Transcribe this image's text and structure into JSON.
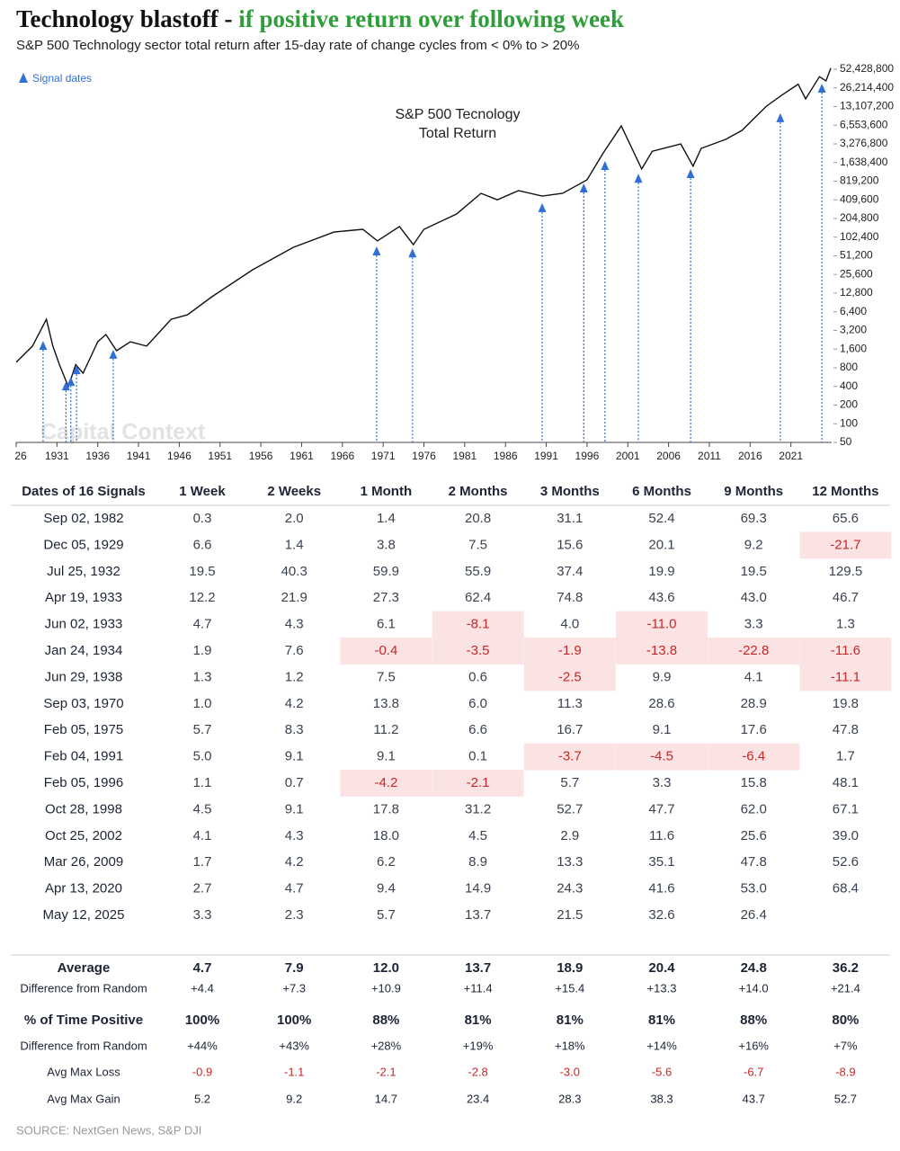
{
  "title": "Technology blastoff - ",
  "title_highlight": "if positive return over following week",
  "subtitle": "S&P 500 Technology sector total return after 15-day rate of change cycles from < 0% to > 20%",
  "chart_data": {
    "type": "line",
    "log_y": true,
    "annotation": [
      "S&P 500 Tecnology",
      "Total Return"
    ],
    "watermark": "Capital Context",
    "series": [
      {
        "color": "#111111",
        "x": [
          1926,
          1928,
          1929.7,
          1930.5,
          1931.3,
          1932.4,
          1933.3,
          1934.2,
          1936,
          1937,
          1938.3,
          1940,
          1942,
          1945,
          1947,
          1950,
          1955,
          1960,
          1965,
          1968.5,
          1970.3,
          1973,
          1974.7,
          1976,
          1980,
          1983,
          1985,
          1987.6,
          1990.5,
          1993,
          1996,
          1998,
          2000.2,
          2002.7,
          2004,
          2007.5,
          2009,
          2010,
          2013,
          2015,
          2018,
          2020,
          2021.9,
          2022.8,
          2024.5,
          2025.3,
          2025.9
        ],
        "values": [
          980,
          1790,
          4850,
          1790,
          900,
          397,
          900,
          655,
          2100,
          2750,
          1510,
          2100,
          1790,
          4850,
          5730,
          11200,
          30500,
          70300,
          124000,
          137000,
          89000,
          152000,
          77600,
          137000,
          242000,
          522000,
          410000,
          577000,
          470000,
          522000,
          860000,
          2350000,
          6380000,
          1290000,
          2490000,
          3270000,
          1430000,
          2770000,
          3870000,
          5400000,
          13300000,
          20500000,
          30000000,
          17400000,
          39700000,
          34000000,
          55000000
        ]
      },
      {
        "name": "Signal dates",
        "color": "#2f6fd6",
        "marker": "triangle",
        "x": [
          1929.3,
          1932.1,
          1932.7,
          1933.4,
          1937.9,
          1970.2,
          1974.6,
          1990.5,
          1995.6,
          1998.2,
          2002.3,
          2008.7,
          2019.7,
          2024.8
        ],
        "values": [
          1900,
          423,
          500,
          770,
          1370,
          63500,
          59000,
          317000,
          660000,
          1520000,
          945000,
          1125000,
          8950000,
          26900000
        ]
      }
    ],
    "xlim": [
      1926,
      2026
    ],
    "xticks": [
      {
        "value": 1926,
        "label": "26"
      },
      1931,
      1936,
      1941,
      1946,
      1951,
      1956,
      1961,
      1966,
      1971,
      1976,
      1981,
      1986,
      1991,
      1996,
      2001,
      2006,
      2011,
      2016,
      2021
    ],
    "ylim": [
      50,
      52428800
    ],
    "yticks": [
      50,
      100,
      200,
      400,
      800,
      {
        "value": 1600,
        "label": "1,600"
      },
      {
        "value": 3200,
        "label": "3,200"
      },
      {
        "value": 6400,
        "label": "6,400"
      },
      {
        "value": 12800,
        "label": "12,800"
      },
      {
        "value": 25600,
        "label": "25,600"
      },
      {
        "value": 51200,
        "label": "51,200"
      },
      {
        "value": 102400,
        "label": "102,400"
      },
      {
        "value": 204800,
        "label": "204,800"
      },
      {
        "value": 409600,
        "label": "409,600"
      },
      {
        "value": 819200,
        "label": "819,200"
      },
      {
        "value": 1638400,
        "label": "1,638,400"
      },
      {
        "value": 3276800,
        "label": "3,276,800"
      },
      {
        "value": 6553600,
        "label": "6,553,600"
      },
      {
        "value": 13107200,
        "label": "13,107,200"
      },
      {
        "value": 26214400,
        "label": "26,214,400"
      },
      {
        "value": 52428800,
        "label": "52,428,800"
      }
    ]
  },
  "table": {
    "header": [
      "Dates of 16 Signals",
      "1 Week",
      "2 Weeks",
      "1 Month",
      "2 Months",
      "3 Months",
      "6 Months",
      "9 Months",
      "12 Months"
    ],
    "rows": [
      [
        "Sep 02, 1982",
        "0.3",
        "2.0",
        "1.4",
        "20.8",
        "31.1",
        "52.4",
        "69.3",
        "65.6"
      ],
      [
        "Dec 05, 1929",
        "6.6",
        "1.4",
        "3.8",
        "7.5",
        "15.6",
        "20.1",
        "9.2",
        "-21.7"
      ],
      [
        "Jul 25, 1932",
        "19.5",
        "40.3",
        "59.9",
        "55.9",
        "37.4",
        "19.9",
        "19.5",
        "129.5"
      ],
      [
        "Apr 19, 1933",
        "12.2",
        "21.9",
        "27.3",
        "62.4",
        "74.8",
        "43.6",
        "43.0",
        "46.7"
      ],
      [
        "Jun 02, 1933",
        "4.7",
        "4.3",
        "6.1",
        "-8.1",
        "4.0",
        "-11.0",
        "3.3",
        "1.3"
      ],
      [
        "Jan 24, 1934",
        "1.9",
        "7.6",
        "-0.4",
        "-3.5",
        "-1.9",
        "-13.8",
        "-22.8",
        "-11.6"
      ],
      [
        "Jun 29, 1938",
        "1.3",
        "1.2",
        "7.5",
        "0.6",
        "-2.5",
        "9.9",
        "4.1",
        "-11.1"
      ],
      [
        "Sep 03, 1970",
        "1.0",
        "4.2",
        "13.8",
        "6.0",
        "11.3",
        "28.6",
        "28.9",
        "19.8"
      ],
      [
        "Feb 05, 1975",
        "5.7",
        "8.3",
        "11.2",
        "6.6",
        "16.7",
        "9.1",
        "17.6",
        "47.8"
      ],
      [
        "Feb 04, 1991",
        "5.0",
        "9.1",
        "9.1",
        "0.1",
        "-3.7",
        "-4.5",
        "-6.4",
        "1.7"
      ],
      [
        "Feb 05, 1996",
        "1.1",
        "0.7",
        "-4.2",
        "-2.1",
        "5.7",
        "3.3",
        "15.8",
        "48.1"
      ],
      [
        "Oct 28, 1998",
        "4.5",
        "9.1",
        "17.8",
        "31.2",
        "52.7",
        "47.7",
        "62.0",
        "67.1"
      ],
      [
        "Oct 25, 2002",
        "4.1",
        "4.3",
        "18.0",
        "4.5",
        "2.9",
        "11.6",
        "25.6",
        "39.0"
      ],
      [
        "Mar 26, 2009",
        "1.7",
        "4.2",
        "6.2",
        "8.9",
        "13.3",
        "35.1",
        "47.8",
        "52.6"
      ],
      [
        "Apr 13, 2020",
        "2.7",
        "4.7",
        "9.4",
        "14.9",
        "24.3",
        "41.6",
        "53.0",
        "68.4"
      ],
      [
        "May 12, 2025",
        "3.3",
        "2.3",
        "5.7",
        "13.7",
        "21.5",
        "32.6",
        "26.4",
        null
      ]
    ],
    "summary": [
      [
        "Average",
        "4.7",
        "7.9",
        "12.0",
        "13.7",
        "18.9",
        "20.4",
        "24.8",
        "36.2"
      ],
      [
        "Difference from Random",
        "+4.4",
        "+7.3",
        "+10.9",
        "+11.4",
        "+15.4",
        "+13.3",
        "+14.0",
        "+21.4"
      ],
      [
        "% of Time Positive",
        "100%",
        "100%",
        "88%",
        "81%",
        "81%",
        "81%",
        "88%",
        "80%"
      ],
      [
        "Difference from Random",
        "+44%",
        "+43%",
        "+28%",
        "+19%",
        "+18%",
        "+14%",
        "+16%",
        "+7%"
      ],
      [
        "Avg Max Loss",
        "-0.9",
        "-1.1",
        "-2.1",
        "-2.8",
        "-3.0",
        "-5.6",
        "-6.7",
        "-8.9"
      ],
      [
        "Avg Max Gain",
        "5.2",
        "9.2",
        "14.7",
        "23.4",
        "28.3",
        "38.3",
        "43.7",
        "52.7"
      ]
    ]
  },
  "source": "SOURCE: NextGen News, S&P DJI"
}
